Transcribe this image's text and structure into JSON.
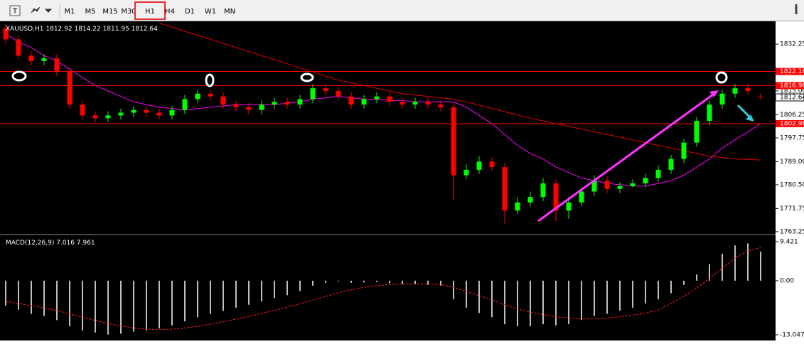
{
  "toolbar": {
    "timeframes": [
      "M1",
      "M5",
      "M15",
      "M30",
      "H1",
      "H4",
      "D1",
      "W1",
      "MN"
    ],
    "active": 4
  },
  "chart_data": [
    {
      "type": "candlestick",
      "title": "XAUUSD,H1",
      "up_color": "#00ff00",
      "down_color": "#ff0000",
      "grid": false,
      "open": [
        1838,
        1834,
        1828,
        1826,
        1827,
        1822,
        1810,
        1806,
        1805,
        1806,
        1807,
        1808,
        1807,
        1806,
        1808,
        1812,
        1814,
        1813,
        1810,
        1809,
        1808,
        1810,
        1811,
        1810,
        1812,
        1816,
        1815,
        1813,
        1810,
        1812,
        1813,
        1811,
        1810,
        1811,
        1810,
        1809,
        1784,
        1786,
        1789,
        1787,
        1771,
        1774,
        1776,
        1781,
        1771,
        1774,
        1778,
        1782,
        1779,
        1780,
        1781,
        1783,
        1786,
        1790,
        1796,
        1804,
        1810,
        1814,
        1816,
        1812.92
      ],
      "high": [
        1839.5,
        1835.5,
        1829.5,
        1828.5,
        1828.5,
        1823.5,
        1811.5,
        1807.5,
        1807.5,
        1808.5,
        1809.5,
        1809.5,
        1808.5,
        1809.5,
        1813.5,
        1815.5,
        1815.5,
        1814.5,
        1811.5,
        1810.5,
        1811.5,
        1812.5,
        1812.5,
        1813.5,
        1817.5,
        1817.5,
        1816.5,
        1814.5,
        1813.5,
        1814.5,
        1814.5,
        1812.5,
        1812.5,
        1812.5,
        1811.5,
        1810.5,
        1788,
        1791,
        1790.5,
        1788.5,
        1776,
        1778,
        1783,
        1782.5,
        1776,
        1779.5,
        1784,
        1783.5,
        1781.5,
        1782.5,
        1784.5,
        1787.5,
        1791.5,
        1797.5,
        1805.5,
        1811.5,
        1815.5,
        1817.5,
        1817.5,
        1814.22
      ],
      "low": [
        1832.5,
        1826.5,
        1824.5,
        1824.5,
        1820.5,
        1808.5,
        1804.5,
        1803.5,
        1803.5,
        1804.5,
        1805.5,
        1805.5,
        1804.5,
        1804.5,
        1806.5,
        1810.5,
        1811.5,
        1808.5,
        1807.5,
        1806.5,
        1806.5,
        1808.5,
        1808.5,
        1808.5,
        1810.5,
        1813.5,
        1811.5,
        1808.5,
        1808.5,
        1810.5,
        1809.5,
        1808.5,
        1808.5,
        1808.5,
        1807.5,
        1775,
        1782.5,
        1784.5,
        1785.5,
        1766,
        1769.5,
        1772.5,
        1774.5,
        1767,
        1768,
        1772.5,
        1776.5,
        1777.5,
        1777.5,
        1779.5,
        1779.5,
        1781.5,
        1784.5,
        1788.5,
        1794.5,
        1802.5,
        1808.5,
        1812.5,
        1813.5,
        1811.95
      ],
      "close": [
        1834,
        1828,
        1826,
        1827,
        1822,
        1810,
        1806,
        1805,
        1806,
        1807,
        1808,
        1807,
        1806,
        1808,
        1812,
        1814,
        1813,
        1810,
        1809,
        1808,
        1810,
        1811,
        1810,
        1812,
        1816,
        1815,
        1813,
        1810,
        1812,
        1813,
        1811,
        1810,
        1811,
        1810,
        1809,
        1784,
        1786,
        1789,
        1787,
        1771,
        1774,
        1776,
        1781,
        1771,
        1774,
        1778,
        1782,
        1779,
        1780,
        1781,
        1783,
        1786,
        1790,
        1796,
        1804,
        1810,
        1814,
        1816,
        1815,
        1812.64
      ],
      "series": [
        {
          "color": "#ff00ff",
          "values": [
            1836,
            1833,
            1831,
            1828,
            1826,
            1823,
            1820,
            1817,
            1815,
            1813,
            1811,
            1810,
            1809,
            1808.5,
            1808,
            1808.5,
            1809,
            1809.5,
            1810,
            1810,
            1810,
            1810,
            1810.5,
            1811,
            1812,
            1812.5,
            1813,
            1812.5,
            1812,
            1812,
            1811.5,
            1811.5,
            1811,
            1811,
            1811,
            1811,
            1809,
            1806,
            1803,
            1799,
            1795,
            1792,
            1790,
            1787,
            1785,
            1783,
            1782,
            1781,
            1780.5,
            1780,
            1780,
            1781,
            1782,
            1784,
            1787,
            1790,
            1794,
            1797,
            1800,
            1803
          ]
        },
        {
          "color": "#e00000",
          "values": [
            null,
            null,
            null,
            null,
            null,
            null,
            null,
            null,
            null,
            null,
            null,
            null,
            1840,
            1838.5,
            1837,
            1835.5,
            1834,
            1832.5,
            1831,
            1829.5,
            1828,
            1826.5,
            1825,
            1823.5,
            1822,
            1820.5,
            1819,
            1818,
            1817,
            1816,
            1815,
            1814,
            1813.5,
            1813,
            1812.5,
            1812,
            1811,
            1809.8,
            1808.6,
            1807.4,
            1806.2,
            1805,
            1804,
            1803,
            1802,
            1801,
            1800,
            1799,
            1798,
            1797,
            1796,
            1795,
            1794,
            1793,
            1792,
            1791,
            1790.5,
            1790,
            1789.8,
            1789.6
          ]
        }
      ],
      "levels": [
        {
          "value": 1822.18,
          "color": "#ff0000"
        },
        {
          "value": 1816.98,
          "color": "#ff0000"
        },
        {
          "value": 1802.98,
          "color": "#ff0000"
        }
      ],
      "ylim": [
        1762.7,
        1840.1
      ],
      "yticks": [
        1832.25,
        {
          "value": 1815.0,
          "label": "1815.00"
        },
        1806.25,
        1797.75,
        {
          "value": 1789.0,
          "label": "1789.00"
        },
        {
          "value": 1780.5,
          "label": "1780.50"
        },
        1771.75,
        1763.25
      ]
    },
    {
      "type": "macd",
      "title": "MACD(12,26,9)",
      "color": "#ffffff",
      "signal_color": "#ff2020",
      "values": [
        -6,
        -7,
        -8,
        -8.5,
        -9.5,
        -11,
        -12,
        -12.5,
        -13,
        -12.8,
        -12.3,
        -12,
        -11.5,
        -10.8,
        -9.8,
        -8.8,
        -8,
        -7.3,
        -6.5,
        -5.8,
        -5,
        -4.2,
        -3.5,
        -2.5,
        -1.2,
        -0.5,
        -0.2,
        -0.5,
        -0.4,
        -0.3,
        -0.6,
        -0.8,
        -0.9,
        -1,
        -1.2,
        -4.5,
        -6.5,
        -7.8,
        -8.8,
        -10.5,
        -11,
        -11,
        -10.5,
        -10.8,
        -10.5,
        -9.5,
        -8.5,
        -8,
        -7.2,
        -6.5,
        -5.5,
        -4.5,
        -3,
        -1,
        1.5,
        4,
        6.5,
        8.5,
        9,
        7.016
      ],
      "signal": [
        -5,
        -5.5,
        -6,
        -6.6,
        -7.2,
        -8,
        -8.8,
        -9.6,
        -10.3,
        -10.9,
        -11.4,
        -11.7,
        -11.8,
        -11.7,
        -11.4,
        -11,
        -10.5,
        -9.9,
        -9.3,
        -8.6,
        -7.9,
        -7.2,
        -6.4,
        -5.6,
        -4.7,
        -3.8,
        -2.9,
        -2.2,
        -1.6,
        -1.2,
        -0.9,
        -0.8,
        -0.8,
        -0.8,
        -0.9,
        -1.6,
        -2.6,
        -3.6,
        -4.6,
        -5.8,
        -6.8,
        -7.6,
        -8.2,
        -8.7,
        -9,
        -9.2,
        -9.2,
        -9,
        -8.7,
        -8.3,
        -7.8,
        -7.1,
        -5.5,
        -3.8,
        -1.8,
        0.5,
        3,
        5.5,
        7.2,
        7.961
      ],
      "ylim": [
        -14.25,
        10.79
      ],
      "yticks": [
        9.421,
        {
          "value": 0,
          "label": "0.00"
        },
        -13.047
      ]
    }
  ]
}
